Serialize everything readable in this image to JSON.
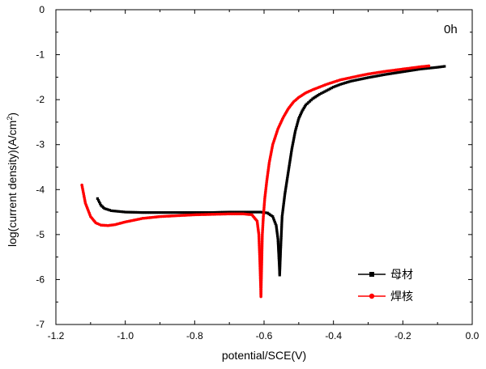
{
  "chart_data": {
    "type": "line",
    "title": "",
    "annotation": "0h",
    "xlabel": "potential/SCE(V)",
    "ylabel_main": "log(current density)(A/cm",
    "ylabel_sup": "2",
    "ylabel_end": ")",
    "xlim": [
      -1.2,
      0.0
    ],
    "ylim": [
      -7,
      0
    ],
    "x_ticks": [
      "-1.2",
      "-1.0",
      "-0.8",
      "-0.6",
      "-0.4",
      "-0.2",
      "0.0"
    ],
    "y_ticks": [
      "0",
      "-1",
      "-2",
      "-3",
      "-4",
      "-5",
      "-6",
      "-7"
    ],
    "grid": false,
    "legend_position": "bottom-right",
    "series": [
      {
        "name": "母材",
        "color": "#000000",
        "marker": "square",
        "x": [
          -1.08,
          -1.07,
          -1.06,
          -1.04,
          -1.0,
          -0.95,
          -0.9,
          -0.85,
          -0.8,
          -0.75,
          -0.7,
          -0.65,
          -0.61,
          -0.59,
          -0.575,
          -0.565,
          -0.56,
          -0.558,
          -0.556,
          -0.555,
          -0.552,
          -0.548,
          -0.54,
          -0.53,
          -0.52,
          -0.51,
          -0.5,
          -0.49,
          -0.48,
          -0.46,
          -0.44,
          -0.42,
          -0.4,
          -0.38,
          -0.35,
          -0.3,
          -0.25,
          -0.2,
          -0.15,
          -0.1,
          -0.08
        ],
        "y": [
          -4.2,
          -4.35,
          -4.42,
          -4.47,
          -4.5,
          -4.51,
          -4.51,
          -4.51,
          -4.51,
          -4.51,
          -4.5,
          -4.5,
          -4.5,
          -4.52,
          -4.6,
          -4.8,
          -5.1,
          -5.4,
          -5.7,
          -5.9,
          -5.3,
          -4.6,
          -4.1,
          -3.6,
          -3.1,
          -2.7,
          -2.42,
          -2.25,
          -2.12,
          -1.98,
          -1.88,
          -1.8,
          -1.72,
          -1.66,
          -1.59,
          -1.51,
          -1.44,
          -1.38,
          -1.32,
          -1.28,
          -1.26
        ]
      },
      {
        "name": "焊核",
        "color": "#ff0000",
        "marker": "circle",
        "x": [
          -1.125,
          -1.115,
          -1.1,
          -1.085,
          -1.07,
          -1.05,
          -1.03,
          -1.0,
          -0.95,
          -0.9,
          -0.85,
          -0.8,
          -0.75,
          -0.7,
          -0.66,
          -0.635,
          -0.62,
          -0.615,
          -0.612,
          -0.61,
          -0.609,
          -0.607,
          -0.605,
          -0.602,
          -0.598,
          -0.592,
          -0.585,
          -0.575,
          -0.56,
          -0.545,
          -0.53,
          -0.515,
          -0.5,
          -0.48,
          -0.46,
          -0.44,
          -0.42,
          -0.4,
          -0.38,
          -0.35,
          -0.32,
          -0.3,
          -0.25,
          -0.2,
          -0.15,
          -0.125
        ],
        "y": [
          -3.9,
          -4.3,
          -4.6,
          -4.74,
          -4.79,
          -4.8,
          -4.78,
          -4.72,
          -4.64,
          -4.6,
          -4.58,
          -4.56,
          -4.55,
          -4.54,
          -4.54,
          -4.56,
          -4.7,
          -5.0,
          -5.6,
          -6.1,
          -6.38,
          -5.7,
          -5.0,
          -4.6,
          -4.2,
          -3.8,
          -3.4,
          -3.0,
          -2.65,
          -2.4,
          -2.2,
          -2.05,
          -1.95,
          -1.85,
          -1.78,
          -1.72,
          -1.66,
          -1.61,
          -1.56,
          -1.51,
          -1.46,
          -1.43,
          -1.37,
          -1.32,
          -1.27,
          -1.25
        ]
      }
    ]
  }
}
